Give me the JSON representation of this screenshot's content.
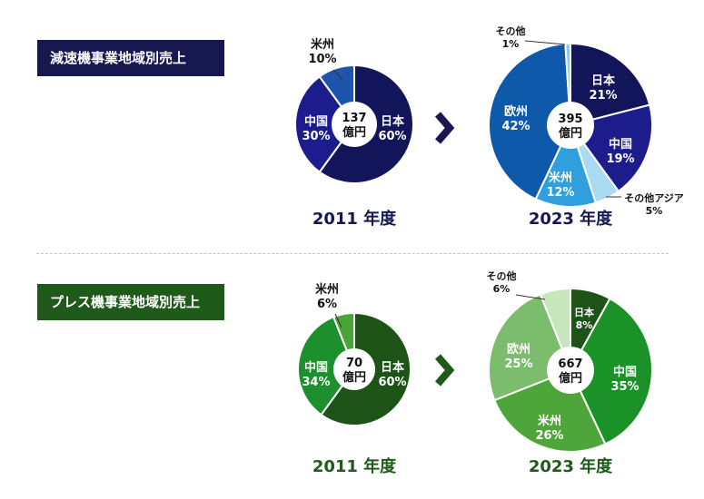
{
  "sections": [
    {
      "label": "減速機事業地域別売上",
      "color": "#16184f"
    },
    {
      "label": "プレス機事業地域別売上",
      "color": "#1f5a1b"
    }
  ],
  "chart_data": [
    {
      "type": "pie",
      "group": "減速機事業地域別売上",
      "year_label": "2011 年度",
      "center_value": "137",
      "center_unit": "億円",
      "slices": [
        {
          "name": "日本",
          "value": 60,
          "label": "60%",
          "color": "#13155a",
          "text_color": "#ffffff"
        },
        {
          "name": "中国",
          "value": 30,
          "label": "30%",
          "color": "#1c1c8c",
          "text_color": "#ffffff"
        },
        {
          "name": "米州",
          "value": 10,
          "label": "10%",
          "color": "#1f54ad",
          "text_color": "#111111"
        }
      ]
    },
    {
      "type": "pie",
      "group": "減速機事業地域別売上",
      "year_label": "2023 年度",
      "center_value": "395",
      "center_unit": "億円",
      "slices": [
        {
          "name": "日本",
          "value": 21,
          "label": "21%",
          "color": "#13155a",
          "text_color": "#ffffff"
        },
        {
          "name": "中国",
          "value": 19,
          "label": "19%",
          "color": "#1c1c8c",
          "text_color": "#ffffff"
        },
        {
          "name": "その他アジア",
          "value": 5,
          "label": "5%",
          "color": "#a9dcf2",
          "text_color": "#111111"
        },
        {
          "name": "米州",
          "value": 12,
          "label": "12%",
          "color": "#2f9fdd",
          "text_color": "#ffffff"
        },
        {
          "name": "欧州",
          "value": 42,
          "label": "42%",
          "color": "#0f59aa",
          "text_color": "#ffffff"
        },
        {
          "name": "その他",
          "value": 1,
          "label": "1%",
          "color": "#8fc9ec",
          "text_color": "#111111"
        }
      ]
    },
    {
      "type": "pie",
      "group": "プレス機事業地域別売上",
      "year_label": "2011 年度",
      "center_value": "70",
      "center_unit": "億円",
      "slices": [
        {
          "name": "日本",
          "value": 60,
          "label": "60%",
          "color": "#1d5317",
          "text_color": "#ffffff"
        },
        {
          "name": "中国",
          "value": 34,
          "label": "34%",
          "color": "#1d8f2c",
          "text_color": "#ffffff"
        },
        {
          "name": "米州",
          "value": 6,
          "label": "6%",
          "color": "#4aa43a",
          "text_color": "#111111"
        }
      ]
    },
    {
      "type": "pie",
      "group": "プレス機事業地域別売上",
      "year_label": "2023 年度",
      "center_value": "667",
      "center_unit": "億円",
      "slices": [
        {
          "name": "日本",
          "value": 8,
          "label": "8%",
          "color": "#1d5317",
          "text_color": "#ffffff"
        },
        {
          "name": "中国",
          "value": 35,
          "label": "35%",
          "color": "#1a9227",
          "text_color": "#ffffff"
        },
        {
          "name": "米州",
          "value": 26,
          "label": "26%",
          "color": "#4ea63a",
          "text_color": "#ffffff"
        },
        {
          "name": "欧州",
          "value": 25,
          "label": "25%",
          "color": "#7bbd6d",
          "text_color": "#ffffff"
        },
        {
          "name": "その他",
          "value": 6,
          "label": "6%",
          "color": "#c6e7bb",
          "text_color": "#111111"
        }
      ]
    }
  ],
  "icons": {
    "arrow": "chevron-right-icon"
  }
}
